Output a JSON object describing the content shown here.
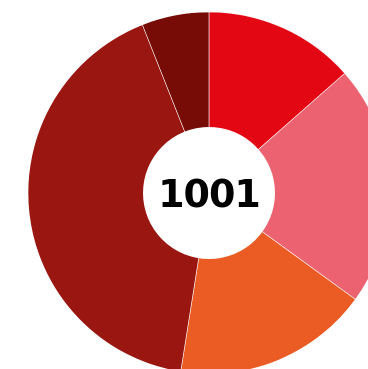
{
  "chart_data": {
    "type": "pie",
    "variant": "donut",
    "center_label": "1001",
    "start_angle_deg": 0,
    "slices": [
      {
        "value": 13.5,
        "color": "#e30613"
      },
      {
        "value": 21.5,
        "color": "#ec6271"
      },
      {
        "value": 17.5,
        "color": "#eb5c24"
      },
      {
        "value": 41.5,
        "color": "#991611"
      },
      {
        "value": 6.0,
        "color": "#760c05"
      }
    ]
  }
}
